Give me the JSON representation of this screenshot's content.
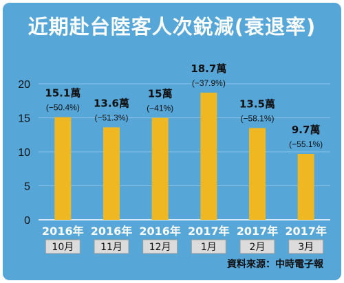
{
  "title": "近期赴台陸客人次銳減(衰退率)",
  "source": "資料來源：中時電子報",
  "colors": {
    "background": "#56a6d8",
    "bar": "#efb823",
    "title_text": "#ffffff",
    "year_text": "#ffffff",
    "month_box": "#dcdcdc",
    "label_text": "#111111"
  },
  "chart_data": {
    "type": "bar",
    "categories": [
      {
        "year": "2016年",
        "month": "10月"
      },
      {
        "year": "2016年",
        "month": "11月"
      },
      {
        "year": "2016年",
        "month": "12月"
      },
      {
        "year": "2017年",
        "month": "1月"
      },
      {
        "year": "2017年",
        "month": "2月"
      },
      {
        "year": "2017年",
        "month": "3月"
      }
    ],
    "values": [
      15.1,
      13.6,
      15,
      18.7,
      13.5,
      9.7
    ],
    "value_labels": [
      "15.1萬",
      "13.6萬",
      "15萬",
      "18.7萬",
      "13.5萬",
      "9.7萬"
    ],
    "change_labels": [
      "(−50.4%)",
      "(−51.3%)",
      "(−41%)",
      "(−37.9%)",
      "(−58.1%)",
      "(−55.1%)"
    ],
    "ylim": [
      0,
      20
    ],
    "yticks": [
      0,
      5,
      10,
      15,
      20
    ],
    "grid": true
  }
}
